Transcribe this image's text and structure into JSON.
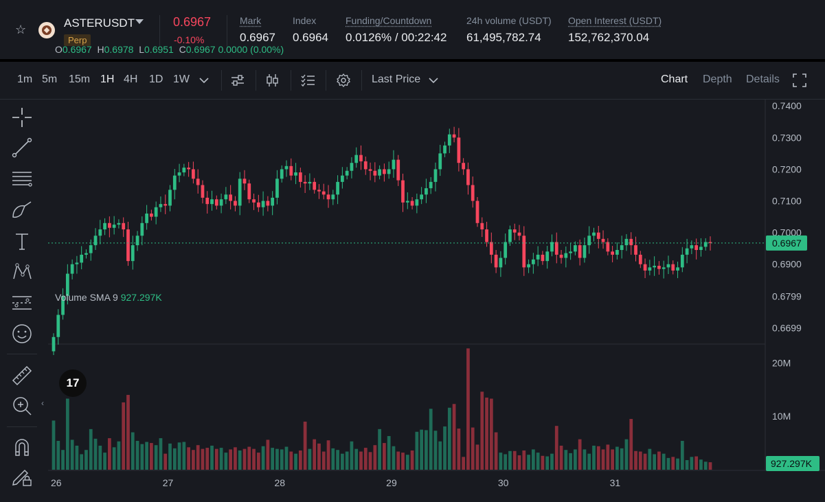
{
  "header": {
    "symbol": "ASTERUSDT",
    "contract_type": "Perp",
    "last_price": "0.6967",
    "change_pct": "-0.10%",
    "stats": [
      {
        "label": "Mark",
        "value": "0.6967"
      },
      {
        "label": "Index",
        "value": "0.6964"
      },
      {
        "label": "Funding/Countdown",
        "value": "0.0126% / 00:22:42"
      },
      {
        "label": "24h volume (USDT)",
        "value": "61,495,782.74"
      },
      {
        "label": "Open Interest (USDT)",
        "value": "152,762,370.04"
      }
    ]
  },
  "toolbar": {
    "timeframes": [
      "1m",
      "5m",
      "15m",
      "1H",
      "4H",
      "1D",
      "1W"
    ],
    "active_timeframe": "1H",
    "price_type": "Last Price",
    "views": [
      "Chart",
      "Depth",
      "Details"
    ],
    "active_view": "Chart"
  },
  "icons": [
    "star-icon",
    "crosshair-icon",
    "trendline-icon",
    "fib-lines-icon",
    "brush-icon",
    "text-icon",
    "pattern-icon",
    "forecast-icon",
    "emoji-icon",
    "ruler-icon",
    "zoom-in-icon",
    "magnet-icon",
    "lock-draw-icon",
    "indicators-icon",
    "candle-type-icon",
    "templates-icon",
    "settings-icon",
    "fullscreen-icon"
  ],
  "colors": {
    "up": "#2ebd85",
    "down": "#f6465d",
    "vol_up": "#1f6b57",
    "vol_down": "#8a2e3a",
    "background": "#181a20"
  },
  "legend": {
    "ohlc": {
      "o": "0.6967",
      "h": "0.6978",
      "l": "0.6951",
      "c": "0.6967",
      "change": "0.0000 (0.00%)"
    },
    "volume_label": "Volume SMA 9",
    "volume_value": "927.297K"
  },
  "chart_data": {
    "type": "candlestick",
    "interval": "1H",
    "x_tick_labels": [
      "26",
      "27",
      "28",
      "29",
      "30",
      "31"
    ],
    "price_axis": {
      "ticks": [
        "0.7400",
        "0.7300",
        "0.7200",
        "0.7100",
        "0.7000",
        "0.6900",
        "0.6799",
        "0.6699"
      ],
      "range": [
        0.665,
        0.742
      ]
    },
    "volume_axis": {
      "ticks": [
        "20M",
        "10M"
      ],
      "range": [
        0,
        23000000
      ]
    },
    "current_price_label": "0.6967",
    "current_volume_label": "927.297K",
    "closes": [
      0.667,
      0.674,
      0.68,
      0.687,
      0.69,
      0.6905,
      0.693,
      0.6935,
      0.696,
      0.699,
      0.701,
      0.703,
      0.7015,
      0.7025,
      0.703,
      0.701,
      0.691,
      0.696,
      0.699,
      0.703,
      0.706,
      0.705,
      0.708,
      0.709,
      0.7085,
      0.7135,
      0.718,
      0.719,
      0.7205,
      0.72,
      0.717,
      0.715,
      0.711,
      0.709,
      0.7105,
      0.7085,
      0.7105,
      0.712,
      0.71,
      0.7085,
      0.717,
      0.7155,
      0.7105,
      0.7095,
      0.708,
      0.71,
      0.7085,
      0.711,
      0.717,
      0.72,
      0.721,
      0.718,
      0.719,
      0.716,
      0.7155,
      0.716,
      0.7135,
      0.713,
      0.712,
      0.7105,
      0.712,
      0.716,
      0.718,
      0.7195,
      0.722,
      0.7245,
      0.7225,
      0.72,
      0.7195,
      0.718,
      0.72,
      0.7185,
      0.72,
      0.723,
      0.7165,
      0.7095,
      0.71,
      0.7085,
      0.7105,
      0.712,
      0.714,
      0.716,
      0.72,
      0.725,
      0.7275,
      0.731,
      0.73,
      0.722,
      0.72,
      0.715,
      0.71,
      0.703,
      0.701,
      0.697,
      0.693,
      0.689,
      0.692,
      0.697,
      0.701,
      0.7,
      0.699,
      0.689,
      0.69,
      0.6915,
      0.693,
      0.691,
      0.694,
      0.697,
      0.693,
      0.692,
      0.6935,
      0.694,
      0.696,
      0.692,
      0.696,
      0.699,
      0.7,
      0.698,
      0.697,
      0.694,
      0.693,
      0.6945,
      0.696,
      0.698,
      0.696,
      0.693,
      0.69,
      0.688,
      0.689,
      0.6895,
      0.6885,
      0.689,
      0.69,
      0.688,
      0.689,
      0.693,
      0.695,
      0.696,
      0.6945,
      0.6955,
      0.697,
      0.6967
    ],
    "volumes_millions": [
      9.2,
      5.4,
      3.7,
      13.3,
      5.6,
      4.5,
      2.9,
      3.7,
      7.6,
      5.8,
      4.5,
      3.2,
      5.9,
      4.2,
      5.3,
      12.6,
      14.0,
      7.0,
      5.4,
      4.8,
      5.2,
      5.0,
      4.6,
      5.9,
      3.0,
      4.9,
      4.0,
      5.1,
      5.2,
      4.2,
      3.7,
      4.6,
      3.9,
      4.1,
      4.5,
      3.9,
      4.1,
      3.2,
      3.8,
      4.2,
      3.6,
      3.9,
      4.3,
      3.9,
      3.2,
      4.4,
      5.6,
      4.1,
      3.9,
      3.8,
      4.3,
      3.4,
      3.0,
      3.6,
      9.0,
      3.9,
      5.7,
      4.9,
      3.4,
      5.5,
      4.0,
      3.7,
      3.0,
      3.4,
      5.3,
      3.9,
      3.4,
      4.1,
      3.3,
      4.6,
      7.6,
      5.0,
      6.3,
      4.4,
      3.4,
      3.2,
      2.8,
      3.6,
      7.1,
      7.5,
      7.4,
      11.4,
      7.3,
      5.3,
      8.1,
      11.6,
      12.3,
      7.7,
      2.4,
      22.7,
      7.9,
      4.7,
      14.6,
      13.5,
      13.3,
      7.0,
      3.2,
      2.9,
      3.5,
      3.5,
      2.7,
      3.6,
      2.8,
      3.8,
      3.2,
      2.6,
      2.5,
      3.0,
      8.2,
      4.5,
      3.7,
      3.1,
      3.8,
      5.7,
      3.8,
      3.0,
      4.5,
      4.4,
      3.8,
      4.7,
      3.8,
      4.3,
      4.0,
      5.7,
      9.5,
      3.5,
      3.4,
      3.0,
      3.9,
      2.9,
      3.4,
      3.0,
      2.2,
      2.4,
      2.1,
      5.4,
      1.8,
      2.4,
      2.5,
      1.9,
      1.5,
      1.4,
      1.0
    ]
  }
}
